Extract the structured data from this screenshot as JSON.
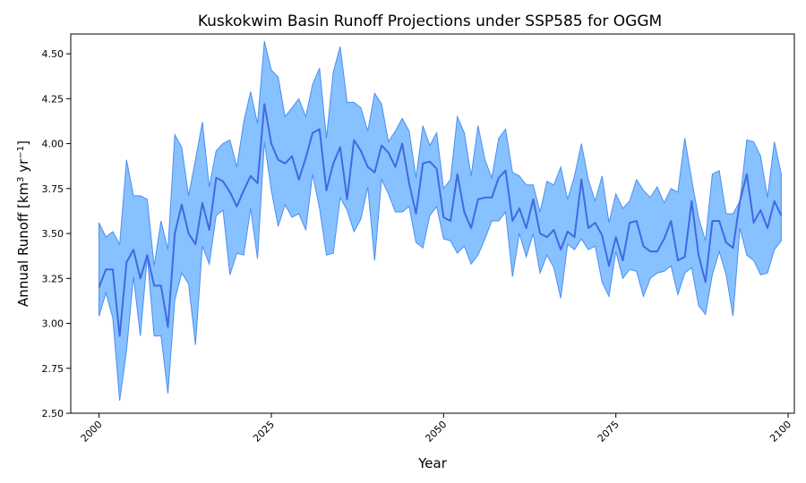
{
  "chart_data": {
    "type": "line",
    "title": "Kuskokwim Basin Runoff Projections under SSP585 for OGGM",
    "xlabel": "Year",
    "ylabel_base": "Annual Runoff [km",
    "ylabel_sup1": "3",
    "ylabel_mid": " yr",
    "ylabel_sup2": "−1",
    "ylabel_end": "]",
    "xlim": [
      1995.9,
      2100.9
    ],
    "ylim": [
      2.5,
      4.61
    ],
    "x_ticks": [
      2000,
      2025,
      2050,
      2075,
      2100
    ],
    "x_tick_labels": [
      "2000",
      "2025",
      "2050",
      "2075",
      "2100"
    ],
    "y_ticks": [
      2.5,
      2.75,
      3.0,
      3.25,
      3.5,
      3.75,
      4.0,
      4.25,
      4.5
    ],
    "y_tick_labels": [
      "2.50",
      "2.75",
      "3.00",
      "3.25",
      "3.50",
      "3.75",
      "4.00",
      "4.25",
      "4.50"
    ],
    "grid": false,
    "legend": "none",
    "colors": {
      "line": "#4169e1",
      "band": "#87c1ff",
      "band_edge": "#4b8ef0"
    },
    "x": [
      2000,
      2001,
      2002,
      2003,
      2004,
      2005,
      2006,
      2007,
      2008,
      2009,
      2010,
      2011,
      2012,
      2013,
      2014,
      2015,
      2016,
      2017,
      2018,
      2019,
      2020,
      2021,
      2022,
      2023,
      2024,
      2025,
      2026,
      2027,
      2028,
      2029,
      2030,
      2031,
      2032,
      2033,
      2034,
      2035,
      2036,
      2037,
      2038,
      2039,
      2040,
      2041,
      2042,
      2043,
      2044,
      2045,
      2046,
      2047,
      2048,
      2049,
      2050,
      2051,
      2052,
      2053,
      2054,
      2055,
      2056,
      2057,
      2058,
      2059,
      2060,
      2061,
      2062,
      2063,
      2064,
      2065,
      2066,
      2067,
      2068,
      2069,
      2070,
      2071,
      2072,
      2073,
      2074,
      2075,
      2076,
      2077,
      2078,
      2079,
      2080,
      2081,
      2082,
      2083,
      2084,
      2085,
      2086,
      2087,
      2088,
      2089,
      2090,
      2091,
      2092,
      2093,
      2094,
      2095,
      2096,
      2097,
      2098,
      2099
    ],
    "series": [
      {
        "role": "mean",
        "values": [
          3.2,
          3.3,
          3.3,
          2.93,
          3.34,
          3.41,
          3.25,
          3.38,
          3.21,
          3.21,
          2.98,
          3.5,
          3.66,
          3.5,
          3.44,
          3.67,
          3.52,
          3.81,
          3.79,
          3.73,
          3.65,
          3.74,
          3.82,
          3.78,
          4.22,
          4.0,
          3.91,
          3.89,
          3.93,
          3.8,
          3.92,
          4.06,
          4.08,
          3.74,
          3.89,
          3.98,
          3.69,
          4.02,
          3.96,
          3.87,
          3.84,
          3.99,
          3.95,
          3.87,
          4.0,
          3.78,
          3.61,
          3.89,
          3.9,
          3.86,
          3.59,
          3.57,
          3.83,
          3.62,
          3.53,
          3.69,
          3.7,
          3.7,
          3.81,
          3.85,
          3.57,
          3.64,
          3.53,
          3.69,
          3.5,
          3.48,
          3.52,
          3.41,
          3.51,
          3.48,
          3.8,
          3.53,
          3.56,
          3.49,
          3.32,
          3.48,
          3.35,
          3.56,
          3.57,
          3.43,
          3.4,
          3.4,
          3.47,
          3.57,
          3.35,
          3.37,
          3.68,
          3.38,
          3.23,
          3.57,
          3.57,
          3.45,
          3.42,
          3.68,
          3.83,
          3.56,
          3.63,
          3.53,
          3.68,
          3.6
        ]
      },
      {
        "role": "upper",
        "values": [
          3.56,
          3.48,
          3.51,
          3.44,
          3.91,
          3.71,
          3.71,
          3.69,
          3.32,
          3.57,
          3.41,
          4.05,
          3.98,
          3.71,
          3.91,
          4.12,
          3.76,
          3.96,
          4.0,
          4.02,
          3.87,
          4.12,
          4.29,
          4.11,
          4.57,
          4.41,
          4.37,
          4.15,
          4.2,
          4.25,
          4.15,
          4.33,
          4.42,
          4.03,
          4.4,
          4.54,
          4.23,
          4.23,
          4.2,
          4.07,
          4.28,
          4.22,
          4.01,
          4.07,
          4.14,
          4.07,
          3.81,
          4.1,
          3.99,
          4.06,
          3.75,
          3.8,
          4.15,
          4.06,
          3.82,
          4.1,
          3.91,
          3.81,
          4.03,
          4.08,
          3.84,
          3.82,
          3.77,
          3.77,
          3.62,
          3.79,
          3.77,
          3.87,
          3.69,
          3.82,
          4.0,
          3.8,
          3.68,
          3.82,
          3.56,
          3.72,
          3.64,
          3.68,
          3.8,
          3.74,
          3.7,
          3.76,
          3.67,
          3.75,
          3.73,
          4.03,
          3.8,
          3.59,
          3.46,
          3.83,
          3.85,
          3.61,
          3.61,
          3.68,
          4.02,
          4.01,
          3.93,
          3.7,
          4.01,
          3.83
        ]
      },
      {
        "role": "lower",
        "values": [
          3.04,
          3.17,
          3.03,
          2.57,
          2.85,
          3.26,
          2.93,
          3.37,
          2.93,
          2.93,
          2.61,
          3.13,
          3.28,
          3.22,
          2.88,
          3.43,
          3.33,
          3.6,
          3.63,
          3.27,
          3.39,
          3.38,
          3.64,
          3.36,
          4.01,
          3.74,
          3.54,
          3.66,
          3.59,
          3.61,
          3.52,
          3.83,
          3.64,
          3.38,
          3.39,
          3.7,
          3.63,
          3.51,
          3.58,
          3.76,
          3.35,
          3.8,
          3.72,
          3.62,
          3.62,
          3.65,
          3.45,
          3.42,
          3.6,
          3.65,
          3.47,
          3.46,
          3.39,
          3.43,
          3.33,
          3.38,
          3.47,
          3.57,
          3.57,
          3.62,
          3.26,
          3.5,
          3.37,
          3.5,
          3.28,
          3.38,
          3.31,
          3.14,
          3.44,
          3.41,
          3.47,
          3.41,
          3.43,
          3.23,
          3.15,
          3.4,
          3.25,
          3.3,
          3.29,
          3.15,
          3.25,
          3.28,
          3.29,
          3.32,
          3.16,
          3.28,
          3.31,
          3.1,
          3.05,
          3.27,
          3.4,
          3.27,
          3.04,
          3.53,
          3.38,
          3.35,
          3.27,
          3.28,
          3.41,
          3.46
        ]
      }
    ]
  }
}
